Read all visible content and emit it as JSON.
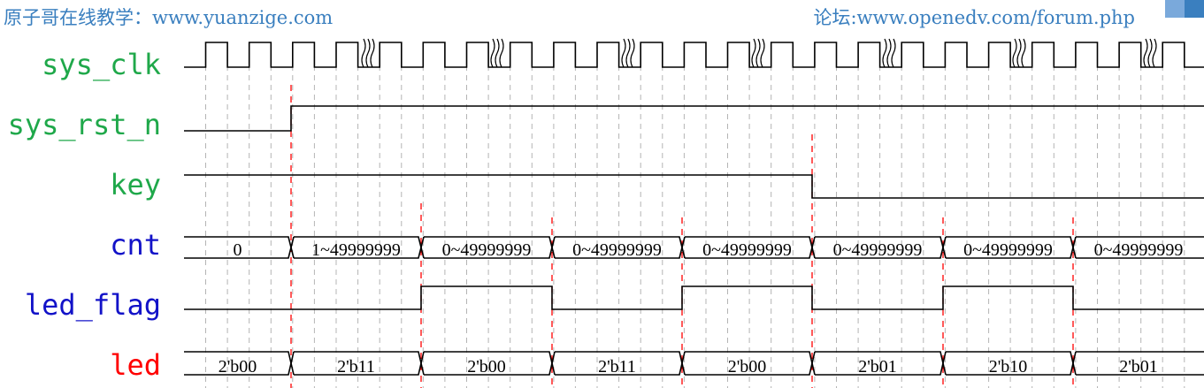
{
  "header": {
    "left_text": "原子哥在线教学：www.yuanzige.com",
    "right_text": "论坛:www.openedv.com/forum.php",
    "text_color": "#3a7fbf",
    "logo_colors": [
      "#ffffff",
      "#7aa9db",
      "#3a7fbf"
    ]
  },
  "colors": {
    "clock_label": "#1fa84a",
    "blue_label": "#1212c8",
    "red_label": "#ff0000",
    "guide_gray": "#b4b4b4",
    "guide_red": "#ff0000",
    "wave": "#000000"
  },
  "signals": {
    "sys_clk": {
      "label": "sys_clk",
      "color": "#1fa84a"
    },
    "sys_rst_n": {
      "label": "sys_rst_n",
      "color": "#1fa84a"
    },
    "key": {
      "label": "key",
      "color": "#1fa84a"
    },
    "cnt": {
      "label": "cnt",
      "color": "#1212c8",
      "values": [
        "0",
        "1~49999999",
        "0~49999999",
        "0~49999999",
        "0~49999999",
        "0~49999999",
        "0~49999999",
        "0~49999999"
      ]
    },
    "led_flag": {
      "label": "led_flag",
      "color": "#1212c8"
    },
    "led": {
      "label": "led",
      "color": "#ff0000",
      "values": [
        "2'b00",
        "2'b11",
        "2'b00",
        "2'b11",
        "2'b00",
        "2'b01",
        "2'b10",
        "2'b01"
      ]
    }
  }
}
